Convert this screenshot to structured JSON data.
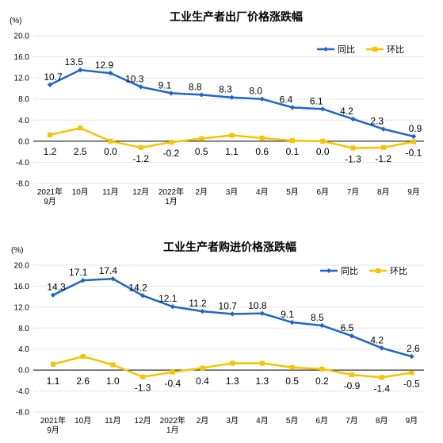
{
  "chart_data": [
    {
      "type": "line",
      "title": "工业生产者出厂价格涨跌幅",
      "unit_label": "(%)",
      "categories": [
        [
          "2021年",
          "9月"
        ],
        [
          "10月"
        ],
        [
          "11月"
        ],
        [
          "12月"
        ],
        [
          "2022年",
          "1月"
        ],
        [
          "2月"
        ],
        [
          "3月"
        ],
        [
          "4月"
        ],
        [
          "5月"
        ],
        [
          "6月"
        ],
        [
          "7月"
        ],
        [
          "8月"
        ],
        [
          "9月"
        ]
      ],
      "ylim": [
        -8.0,
        20.0
      ],
      "yticks": [
        "20.0",
        "16.0",
        "12.0",
        "8.0",
        "4.0",
        "0.0",
        "-4.0",
        "-8.0"
      ],
      "grid": true,
      "legend_position": "top-right",
      "series": [
        {
          "name": "同比",
          "color": "#1f66c6",
          "values": [
            10.7,
            13.5,
            12.9,
            10.3,
            9.1,
            8.8,
            8.3,
            8.0,
            6.4,
            6.1,
            4.2,
            2.3,
            0.9
          ],
          "labels": [
            "10.7",
            "13.5",
            "12.9",
            "10.3",
            "9.1",
            "8.8",
            "8.3",
            "8.0",
            "6.4",
            "6.1",
            "4.2",
            "2.3",
            "0.9"
          ]
        },
        {
          "name": "环比",
          "color": "#f5c400",
          "values": [
            1.2,
            2.5,
            0.0,
            -1.2,
            -0.2,
            0.5,
            1.1,
            0.6,
            0.1,
            0.0,
            -1.3,
            -1.2,
            -0.1
          ],
          "labels": [
            "1.2",
            "2.5",
            "0.0",
            "-1.2",
            "-0.2",
            "0.5",
            "1.1",
            "0.6",
            "0.1",
            "0.0",
            "-1.3",
            "-1.2",
            "-0.1"
          ]
        }
      ]
    },
    {
      "type": "line",
      "title": "工业生产者购进价格涨跌幅",
      "unit_label": "(%)",
      "categories": [
        [
          "2021年",
          "9月"
        ],
        [
          "10月"
        ],
        [
          "11月"
        ],
        [
          "12月"
        ],
        [
          "2022年",
          "1月"
        ],
        [
          "2月"
        ],
        [
          "3月"
        ],
        [
          "4月"
        ],
        [
          "5月"
        ],
        [
          "6月"
        ],
        [
          "7月"
        ],
        [
          "8月"
        ],
        [
          "9月"
        ]
      ],
      "ylim": [
        -8.0,
        20.0
      ],
      "yticks": [
        "20.0",
        "16.0",
        "12.0",
        "8.0",
        "4.0",
        "0.0",
        "-4.0",
        "-8.0"
      ],
      "grid": true,
      "legend_position": "top-right",
      "series": [
        {
          "name": "同比",
          "color": "#1f66c6",
          "values": [
            14.3,
            17.1,
            17.4,
            14.2,
            12.1,
            11.2,
            10.7,
            10.8,
            9.1,
            8.5,
            6.5,
            4.2,
            2.6
          ],
          "labels": [
            "14.3",
            "17.1",
            "17.4",
            "14.2",
            "12.1",
            "11.2",
            "10.7",
            "10.8",
            "9.1",
            "8.5",
            "6.5",
            "4.2",
            "2.6"
          ]
        },
        {
          "name": "环比",
          "color": "#f5c400",
          "values": [
            1.1,
            2.6,
            1.0,
            -1.3,
            -0.4,
            0.4,
            1.3,
            1.3,
            0.5,
            0.2,
            -0.9,
            -1.4,
            -0.5
          ],
          "labels": [
            "1.1",
            "2.6",
            "1.0",
            "-1.3",
            "-0.4",
            "0.4",
            "1.3",
            "1.3",
            "0.5",
            "0.2",
            "-0.9",
            "-1.4",
            "-0.5"
          ]
        }
      ]
    }
  ]
}
